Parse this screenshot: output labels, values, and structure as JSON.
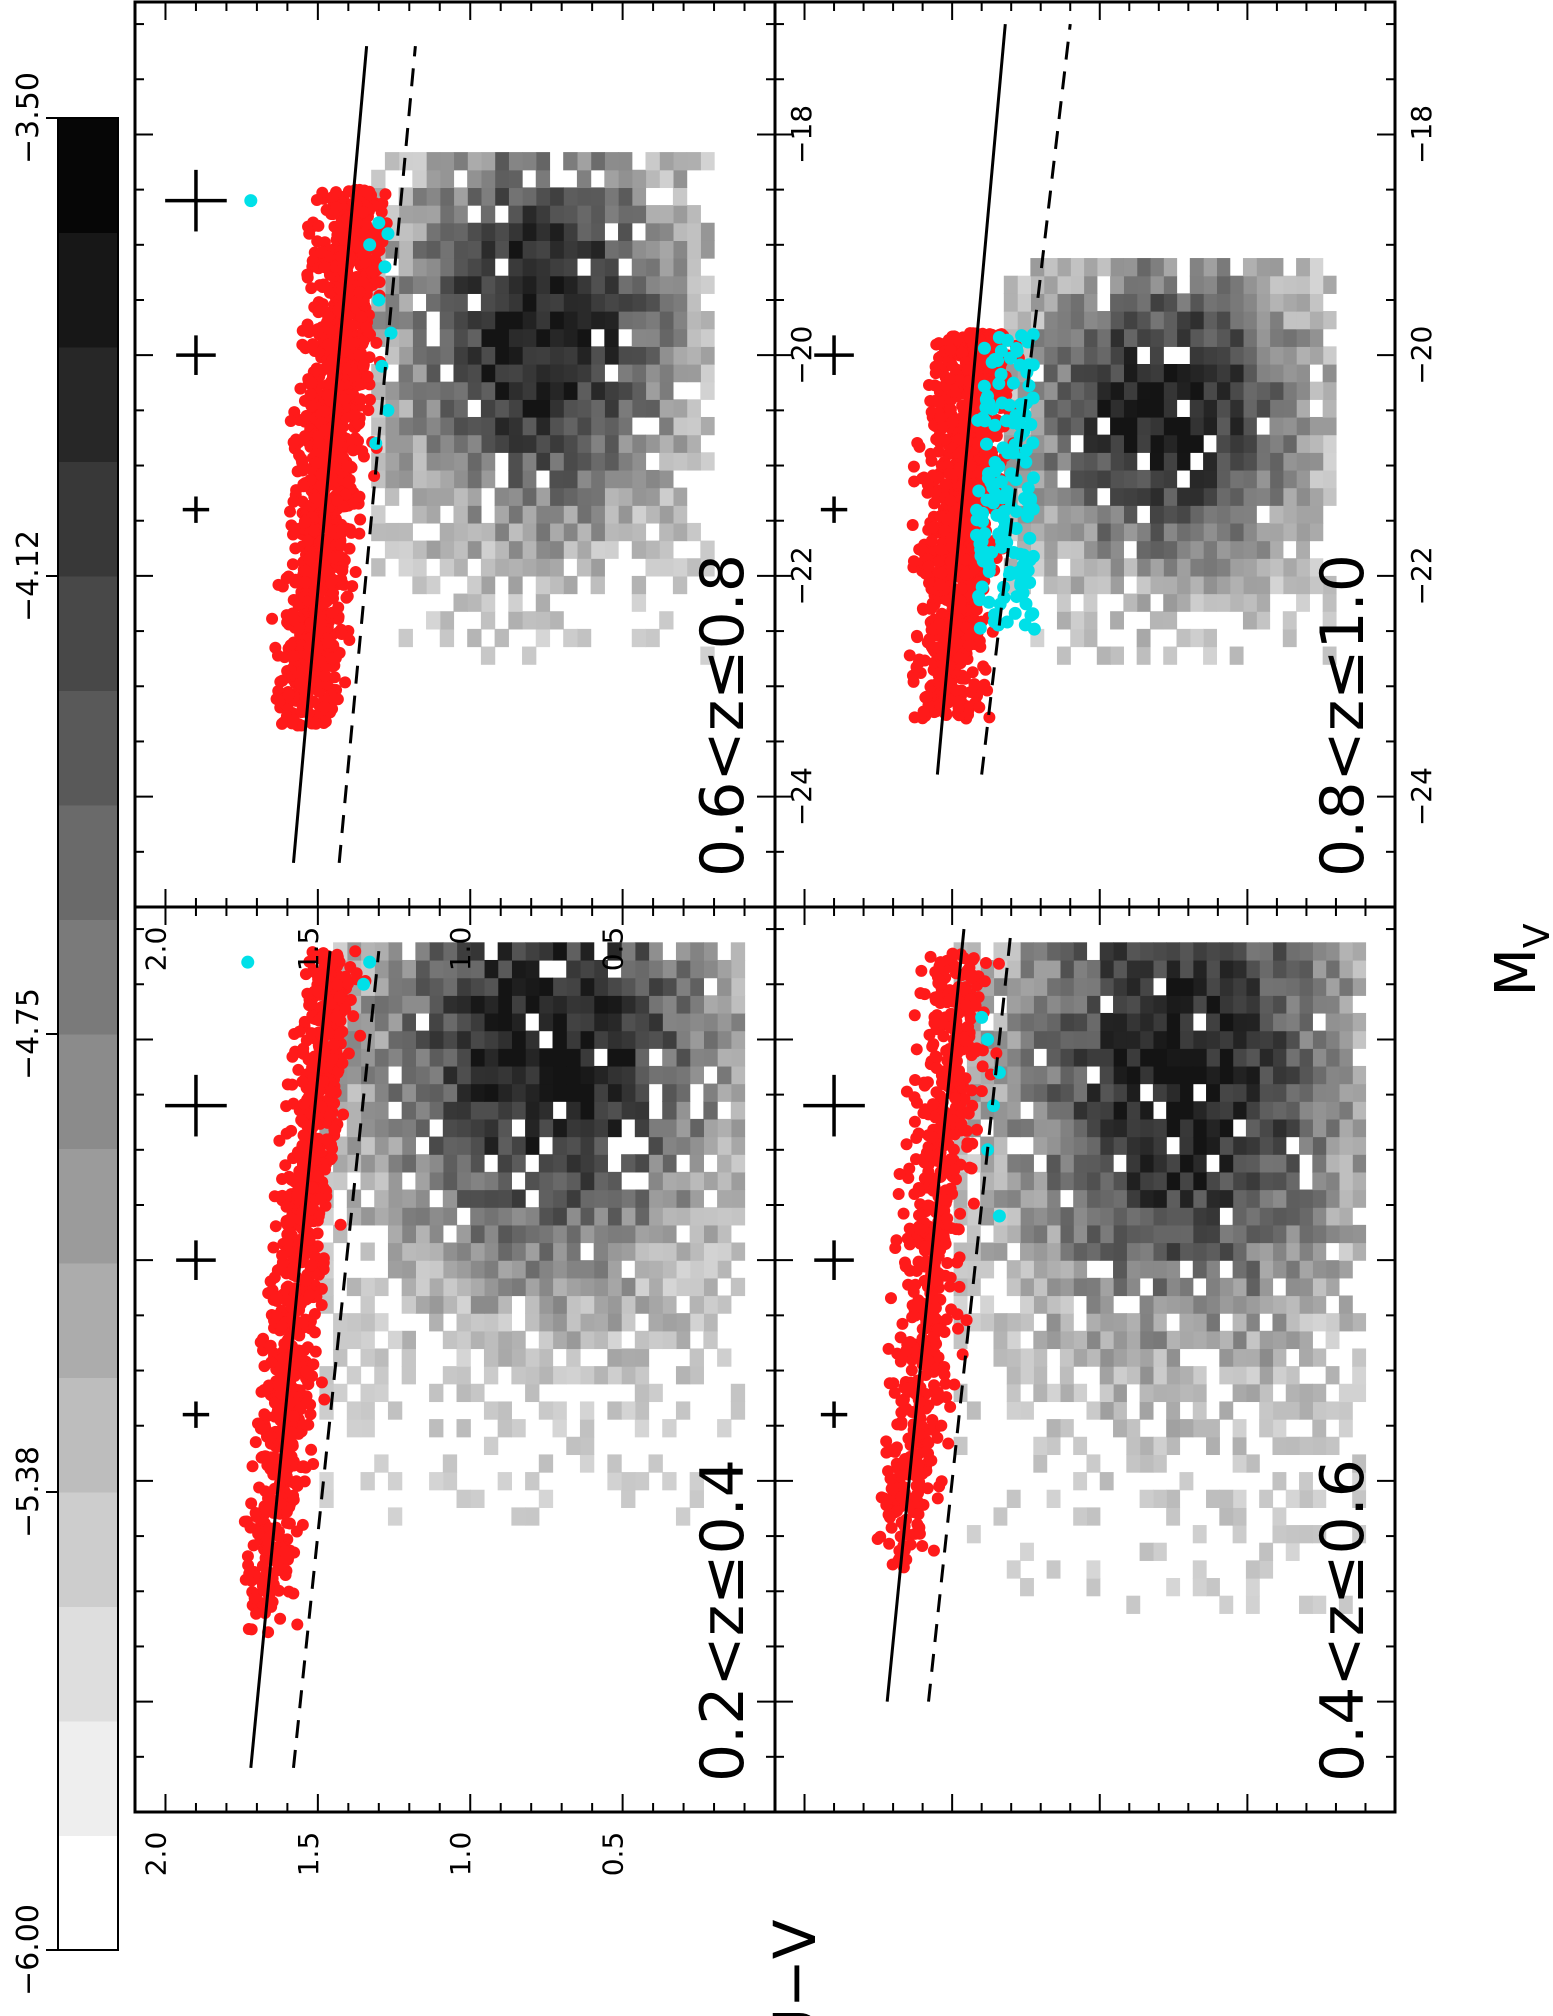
{
  "figure": {
    "xlabel": "M",
    "xlabel_sub": "V",
    "ylabel": "U−V",
    "colorbar": {
      "tick_labels": [
        "−6.00",
        "−5.38",
        "−4.75",
        "−4.12",
        "−3.50"
      ],
      "range": [
        -6.0,
        -3.5
      ],
      "levels": 16
    }
  },
  "chart_data": [
    {
      "type": "scatter",
      "panel": "top-left",
      "label": "0.2<z≤0.4",
      "x_tick_labels": [
        "−24",
        "−22",
        "−20",
        "−18"
      ],
      "y_tick_labels": [
        "2.0",
        "1.5",
        "1.0",
        "0.5"
      ],
      "xlim": [
        -25,
        -16.8
      ],
      "ylim": [
        0.0,
        2.1
      ],
      "fit_line": [
        [
          -24.6,
          1.72
        ],
        [
          -17.2,
          1.46
        ]
      ],
      "dashed_line": [
        [
          -24.6,
          1.58
        ],
        [
          -17.2,
          1.3
        ]
      ],
      "error_crosses": [
        {
          "x": -21.4,
          "y": 1.9,
          "size": 0.6
        },
        {
          "x": -20.0,
          "y": 1.9,
          "size": 0.9
        },
        {
          "x": -18.6,
          "y": 1.9,
          "size": 1.4
        }
      ],
      "density": {
        "x_range": [
          -22.4,
          -17.2
        ],
        "y_range": [
          0.1,
          1.45
        ],
        "peak": [
          -18.2,
          0.72
        ]
      },
      "red_points": {
        "count": 900,
        "x_range": [
          -23.4,
          -17.2
        ],
        "center_line": "fit_line",
        "scatter": 0.08
      },
      "cyan_points": [
        [
          -17.3,
          1.73
        ],
        [
          -17.3,
          1.33
        ],
        [
          -17.5,
          1.35
        ]
      ],
      "series": [
        {
          "name": "",
          "color": "#ff0000"
        },
        {
          "name": "",
          "color": "#00e5e5"
        }
      ]
    },
    {
      "type": "scatter",
      "panel": "top-right",
      "label": "0.4<z≤0.6",
      "x_tick_labels": [
        "−24",
        "−22",
        "−20",
        "−18"
      ],
      "y_tick_labels": [],
      "xlim": [
        -25,
        -16.8
      ],
      "ylim": [
        0.0,
        2.1
      ],
      "fit_line": [
        [
          -24.0,
          1.72
        ],
        [
          -17.0,
          1.46
        ]
      ],
      "dashed_line": [
        [
          -24.0,
          1.58
        ],
        [
          -17.0,
          1.3
        ]
      ],
      "error_crosses": [
        {
          "x": -21.4,
          "y": 1.9,
          "size": 0.6
        },
        {
          "x": -20.0,
          "y": 1.9,
          "size": 0.9
        },
        {
          "x": -18.6,
          "y": 1.9,
          "size": 1.4
        }
      ],
      "density": {
        "x_range": [
          -23.2,
          -17.2
        ],
        "y_range": [
          0.1,
          1.45
        ],
        "peak": [
          -18.4,
          0.7
        ]
      },
      "red_points": {
        "count": 650,
        "x_range": [
          -22.8,
          -17.2
        ],
        "center_line": "fit_line",
        "scatter": 0.1
      },
      "cyan_points": [
        [
          -18.0,
          1.38
        ],
        [
          -18.3,
          1.34
        ],
        [
          -18.6,
          1.36
        ],
        [
          -19.0,
          1.38
        ],
        [
          -19.6,
          1.34
        ],
        [
          -17.8,
          1.4
        ]
      ],
      "series": [
        {
          "name": "",
          "color": "#ff0000"
        },
        {
          "name": "",
          "color": "#00e5e5"
        }
      ]
    },
    {
      "type": "scatter",
      "panel": "bottom-left",
      "label": "0.6<z≤0.8",
      "x_tick_labels": [
        "−24",
        "−22",
        "−20",
        "−18"
      ],
      "y_tick_labels": [
        "2.0",
        "1.5",
        "1.0",
        "0.5"
      ],
      "xlim": [
        -25,
        -16.8
      ],
      "ylim": [
        0.0,
        2.1
      ],
      "fit_line": [
        [
          -24.6,
          1.58
        ],
        [
          -17.2,
          1.34
        ]
      ],
      "dashed_line": [
        [
          -24.6,
          1.43
        ],
        [
          -17.2,
          1.18
        ]
      ],
      "error_crosses": [
        {
          "x": -21.4,
          "y": 1.9,
          "size": 0.6
        },
        {
          "x": -20.0,
          "y": 1.9,
          "size": 0.9
        },
        {
          "x": -18.6,
          "y": 1.9,
          "size": 1.4
        }
      ],
      "density": {
        "x_range": [
          -22.8,
          -18.2
        ],
        "y_range": [
          0.2,
          1.3
        ],
        "peak": [
          -19.8,
          0.75
        ]
      },
      "red_points": {
        "count": 1300,
        "x_range": [
          -23.4,
          -18.5
        ],
        "center_line": "fit_line",
        "scatter": 0.1
      },
      "cyan_points": [
        [
          -18.6,
          1.72
        ],
        [
          -18.8,
          1.3
        ],
        [
          -19.2,
          1.28
        ],
        [
          -19.5,
          1.3
        ],
        [
          -19.8,
          1.26
        ],
        [
          -20.1,
          1.29
        ],
        [
          -20.5,
          1.27
        ],
        [
          -20.8,
          1.31
        ],
        [
          -19.0,
          1.33
        ],
        [
          -18.9,
          1.27
        ]
      ],
      "series": [
        {
          "name": "",
          "color": "#ff0000"
        },
        {
          "name": "",
          "color": "#00e5e5"
        }
      ]
    },
    {
      "type": "scatter",
      "panel": "bottom-right",
      "label": "0.8<z≤1.0",
      "x_tick_labels": [
        "−24",
        "−22",
        "−20",
        "−18"
      ],
      "y_tick_labels": [],
      "xlim": [
        -25,
        -16.8
      ],
      "ylim": [
        0.0,
        2.1
      ],
      "fit_line": [
        [
          -23.8,
          1.55
        ],
        [
          -17.0,
          1.32
        ]
      ],
      "dashed_line": [
        [
          -23.8,
          1.4
        ],
        [
          -17.0,
          1.1
        ]
      ],
      "error_crosses": [
        {
          "x": -21.4,
          "y": 1.9,
          "size": 0.6
        },
        {
          "x": -20.0,
          "y": 1.9,
          "size": 0.9
        }
      ],
      "density": {
        "x_range": [
          -22.8,
          -19.2
        ],
        "y_range": [
          0.2,
          1.3
        ],
        "peak": [
          -20.6,
          0.75
        ]
      },
      "red_points": {
        "count": 1100,
        "x_range": [
          -23.3,
          -19.8
        ],
        "center_line": "fit_line",
        "scatter": 0.12
      },
      "cyan_points": {
        "count": 160,
        "x_range": [
          -22.5,
          -19.8
        ],
        "y_range": [
          1.22,
          1.42
        ]
      },
      "series": [
        {
          "name": "",
          "color": "#ff0000"
        },
        {
          "name": "",
          "color": "#00e5e5"
        }
      ]
    }
  ]
}
